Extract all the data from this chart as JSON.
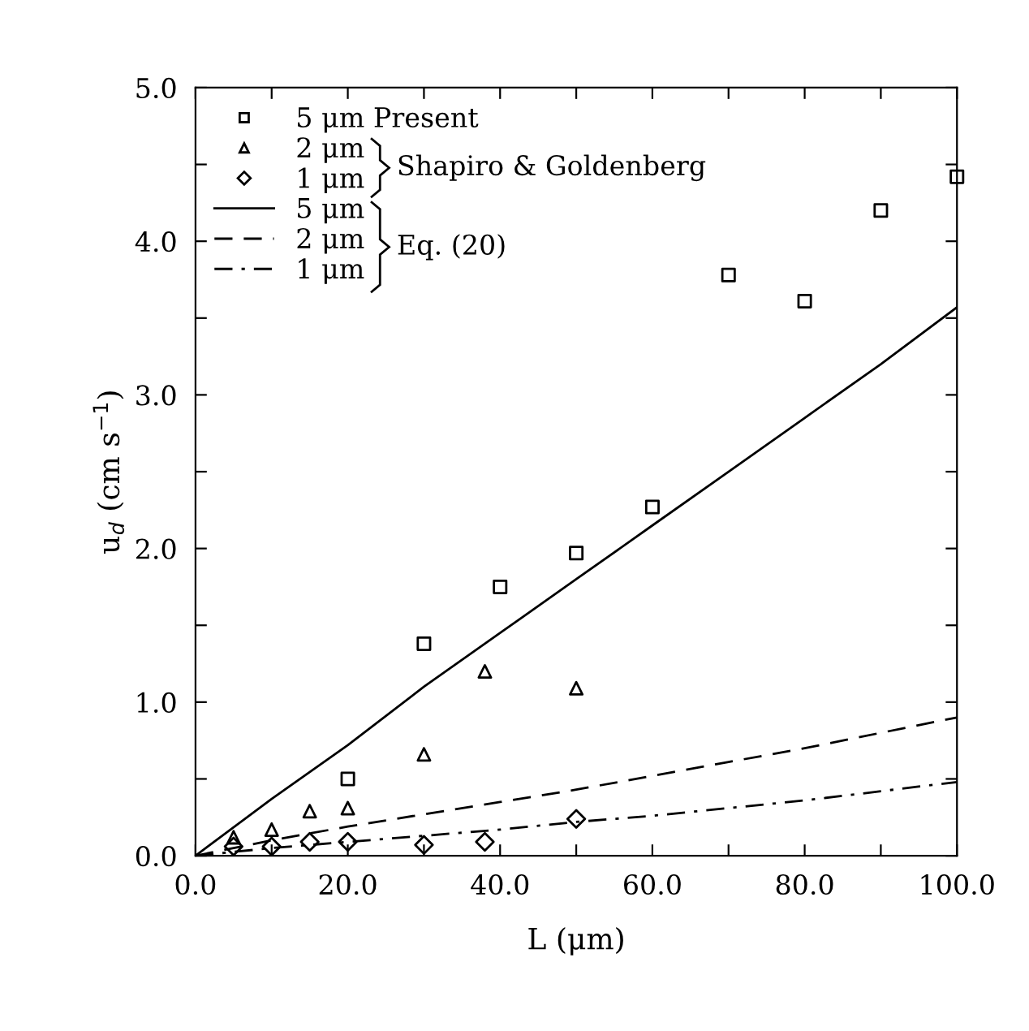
{
  "chart_data": {
    "type": "scatter",
    "xlabel": "L (μm)",
    "ylabel": "u$_{d}$ (cm s$^{−1}$)",
    "xlim": [
      0,
      100
    ],
    "ylim": [
      0,
      5
    ],
    "xticks": [
      {
        "value": 0,
        "label": "0.0"
      },
      {
        "value": 10,
        "label": null
      },
      {
        "value": 20,
        "label": "20.0"
      },
      {
        "value": 30,
        "label": null
      },
      {
        "value": 40,
        "label": "40.0"
      },
      {
        "value": 50,
        "label": null
      },
      {
        "value": 60,
        "label": "60.0"
      },
      {
        "value": 70,
        "label": null
      },
      {
        "value": 80,
        "label": "80.0"
      },
      {
        "value": 90,
        "label": null
      },
      {
        "value": 100,
        "label": "100.0"
      }
    ],
    "yticks": [
      {
        "value": 0,
        "label": "0.0"
      },
      {
        "value": 0.5,
        "label": null
      },
      {
        "value": 1,
        "label": "1.0"
      },
      {
        "value": 1.5,
        "label": null
      },
      {
        "value": 2,
        "label": "2.0"
      },
      {
        "value": 2.5,
        "label": null
      },
      {
        "value": 3,
        "label": "3.0"
      },
      {
        "value": 3.5,
        "label": null
      },
      {
        "value": 4,
        "label": "4.0"
      },
      {
        "value": 4.5,
        "label": null
      },
      {
        "value": 5,
        "label": "5.0"
      }
    ],
    "grid": false,
    "legend": "top left",
    "annotations": [
      "Shapiro & Goldenberg",
      "Eq. (20)"
    ],
    "series": [
      {
        "name": "5 μm Present",
        "marker": "square",
        "color": "#000000",
        "x": [
          20,
          30,
          40,
          50,
          60,
          70,
          80,
          90,
          100
        ],
        "values": [
          0.5,
          1.38,
          1.75,
          1.97,
          2.27,
          3.78,
          3.61,
          4.2,
          4.42
        ]
      },
      {
        "name": "2 μm",
        "marker": "triangle",
        "color": "#000000",
        "x": [
          5,
          10,
          15,
          20,
          30,
          38,
          50
        ],
        "values": [
          0.12,
          0.17,
          0.29,
          0.31,
          0.66,
          1.2,
          1.09
        ]
      },
      {
        "name": "1 μm",
        "marker": "diamond",
        "color": "#000000",
        "x": [
          5,
          10,
          15,
          20,
          30,
          38,
          50
        ],
        "values": [
          0.06,
          0.06,
          0.09,
          0.09,
          0.07,
          0.09,
          0.24
        ]
      },
      {
        "name": "5 μm",
        "type": "line",
        "line_style": "solid",
        "marker": "none",
        "color": "#000000",
        "x": [
          0,
          10,
          20,
          30,
          40,
          50,
          60,
          70,
          80,
          90,
          100
        ],
        "values": [
          0,
          0.37,
          0.72,
          1.1,
          1.45,
          1.8,
          2.15,
          2.5,
          2.85,
          3.2,
          3.57
        ]
      },
      {
        "name": "2 μm",
        "type": "line",
        "line_style": "dashed",
        "marker": "none",
        "color": "#000000",
        "x": [
          0,
          10,
          20,
          30,
          40,
          50,
          60,
          70,
          80,
          90,
          100
        ],
        "values": [
          0,
          0.1,
          0.19,
          0.27,
          0.35,
          0.43,
          0.52,
          0.61,
          0.7,
          0.8,
          0.9
        ]
      },
      {
        "name": "1 μm",
        "type": "line",
        "line_style": "dashdot",
        "marker": "none",
        "color": "#000000",
        "x": [
          0,
          10,
          20,
          30,
          40,
          50,
          60,
          70,
          80,
          90,
          100
        ],
        "values": [
          0,
          0.05,
          0.09,
          0.13,
          0.17,
          0.22,
          0.26,
          0.31,
          0.36,
          0.42,
          0.48
        ]
      }
    ]
  }
}
